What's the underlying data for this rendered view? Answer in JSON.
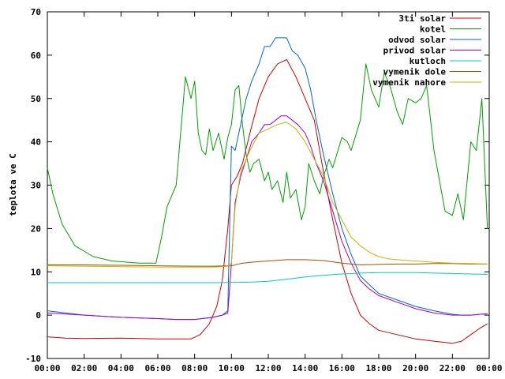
{
  "chart_data": {
    "type": "line",
    "title": "",
    "xlabel": "",
    "ylabel": "teplota ve C",
    "xlim": [
      0,
      24
    ],
    "ylim": [
      -10,
      70
    ],
    "x_ticks": [
      "00:00",
      "02:00",
      "04:00",
      "06:00",
      "08:00",
      "10:00",
      "12:00",
      "14:00",
      "16:00",
      "18:00",
      "20:00",
      "22:00",
      "00:00"
    ],
    "y_ticks": [
      "-10",
      "0",
      "10",
      "20",
      "30",
      "40",
      "50",
      "60",
      "70"
    ],
    "grid": false,
    "legend_position": "top-right",
    "series": [
      {
        "name": "3ti solar",
        "color": "#cc0000",
        "x": [
          0,
          1,
          2,
          4,
          6,
          7,
          7.8,
          8.3,
          8.8,
          9.2,
          9.5,
          9.8,
          10.0,
          10.3,
          10.6,
          11,
          11.5,
          12,
          12.5,
          13,
          13.5,
          14,
          14.5,
          15,
          15.5,
          16,
          16.5,
          17,
          17.5,
          18,
          19,
          20,
          21,
          22,
          22.5,
          23,
          23.5,
          23.9
        ],
        "y": [
          -5,
          -5.3,
          -5.4,
          -5.3,
          -5.5,
          -5.5,
          -5.5,
          -4.5,
          -2,
          2,
          8,
          20,
          30,
          32,
          35,
          42,
          50,
          55,
          58,
          59,
          55,
          50,
          45,
          33,
          22,
          12,
          5,
          0,
          -2,
          -3.5,
          -4.5,
          -5.5,
          -6,
          -6.5,
          -6,
          -4.5,
          -3,
          -2
        ]
      },
      {
        "name": "kotel",
        "color": "#00a000",
        "x": [
          0,
          0.3,
          0.8,
          1.5,
          2.5,
          3.5,
          5,
          5.9,
          6.2,
          6.5,
          7,
          7.5,
          7.8,
          8,
          8.2,
          8.4,
          8.6,
          8.8,
          9,
          9.3,
          9.6,
          9.8,
          10,
          10.2,
          10.4,
          10.6,
          10.8,
          11,
          11.2,
          11.5,
          11.8,
          12,
          12.2,
          12.5,
          12.8,
          13,
          13.2,
          13.5,
          13.8,
          14,
          14.2,
          14.5,
          14.8,
          15,
          15.3,
          15.5,
          16,
          16.3,
          16.5,
          17,
          17.3,
          17.6,
          18,
          18.3,
          18.6,
          19,
          19.3,
          19.6,
          20,
          20.3,
          20.6,
          21,
          21.3,
          21.6,
          22,
          22.3,
          22.6,
          23,
          23.3,
          23.6,
          23.9
        ],
        "y": [
          34,
          28,
          21,
          16,
          13.5,
          12.5,
          12,
          12,
          18,
          25,
          30,
          55,
          50,
          54,
          42,
          38,
          37,
          43,
          38,
          42,
          36,
          41,
          44,
          52,
          53,
          44,
          37,
          33,
          35,
          36,
          31,
          33,
          29,
          31,
          26,
          33,
          27,
          29,
          22,
          25,
          35,
          31,
          28,
          32,
          36,
          34,
          41,
          40,
          38,
          45,
          58,
          52,
          48,
          56,
          53,
          47,
          44,
          50,
          49,
          50,
          53,
          38,
          31,
          24,
          23,
          28,
          22,
          40,
          38,
          50,
          20
        ]
      },
      {
        "name": "odvod solar",
        "color": "#0066cc",
        "x": [
          0,
          2,
          4,
          6,
          7,
          8,
          9,
          9.5,
          9.8,
          10.0,
          10.2,
          10.5,
          10.8,
          11.1,
          11.5,
          11.8,
          12.1,
          12.4,
          12.7,
          13,
          13.3,
          13.6,
          14,
          14.3,
          14.6,
          15,
          15.5,
          16,
          16.5,
          17,
          17.5,
          18,
          19,
          20,
          21,
          22,
          22.5,
          23,
          23.5,
          23.9
        ],
        "y": [
          1,
          0,
          -0.5,
          -0.8,
          -1,
          -1,
          -0.5,
          0,
          1,
          39,
          38,
          44,
          50,
          54,
          58,
          62,
          62,
          64,
          64,
          64,
          61,
          60,
          57,
          52,
          45,
          37,
          28,
          20,
          14,
          9,
          7,
          5,
          3.5,
          2,
          1,
          0.2,
          0,
          0,
          0.2,
          0.3
        ]
      },
      {
        "name": "privod solar",
        "color": "#a000c8",
        "x": [
          0,
          2,
          4,
          6,
          7,
          8,
          9,
          9.5,
          9.8,
          10.0,
          10.2,
          10.5,
          10.8,
          11.1,
          11.5,
          11.8,
          12.1,
          12.4,
          12.7,
          13,
          13.3,
          13.6,
          14,
          14.3,
          14.6,
          15,
          15.5,
          16,
          16.5,
          17,
          17.5,
          18,
          19,
          20,
          21,
          22,
          22.5,
          23,
          23.5,
          23.9
        ],
        "y": [
          0.5,
          0,
          -0.5,
          -0.8,
          -1,
          -1,
          -0.5,
          0,
          0.5,
          12,
          26,
          32,
          36,
          40,
          42,
          44,
          44,
          45,
          46,
          46,
          45,
          44,
          42,
          39,
          35,
          31,
          24,
          17,
          12,
          8,
          6,
          4.5,
          3,
          1.5,
          0.5,
          0,
          0,
          0,
          0.2,
          0.3
        ]
      },
      {
        "name": "kutloch",
        "color": "#00c8c8",
        "x": [
          0,
          3,
          6,
          9,
          11,
          12,
          13,
          14,
          15,
          16,
          17,
          18,
          19,
          20,
          21,
          22,
          23,
          23.9
        ],
        "y": [
          7.5,
          7.5,
          7.5,
          7.5,
          7.6,
          7.8,
          8.3,
          8.8,
          9.2,
          9.5,
          9.7,
          9.8,
          9.8,
          9.8,
          9.7,
          9.6,
          9.5,
          9.4
        ]
      },
      {
        "name": "vymenik dole",
        "color": "#a05000",
        "x": [
          0,
          2,
          4,
          6,
          8,
          9,
          10,
          10.5,
          11,
          12,
          13,
          14,
          15,
          16,
          17,
          18,
          19,
          20,
          21,
          22,
          23,
          23.9
        ],
        "y": [
          11.6,
          11.6,
          11.5,
          11.4,
          11.3,
          11.3,
          11.4,
          11.9,
          12.2,
          12.5,
          12.8,
          12.8,
          12.6,
          12,
          11.6,
          11.7,
          11.8,
          11.8,
          11.9,
          11.9,
          11.8,
          11.8
        ]
      },
      {
        "name": "vymenik nahore",
        "color": "#c8b400",
        "x": [
          0,
          2,
          4,
          6,
          8,
          9,
          9.5,
          9.8,
          10.0,
          10.2,
          10.5,
          11,
          11.5,
          12,
          12.5,
          13,
          13.5,
          14,
          14.5,
          15,
          15.5,
          16,
          16.5,
          17,
          17.5,
          18,
          18.5,
          19,
          20,
          21,
          22,
          23,
          23.9
        ],
        "y": [
          11.4,
          11.3,
          11.2,
          11.1,
          11.1,
          11.1,
          11.2,
          11.3,
          12,
          25,
          33,
          38,
          42,
          43,
          44,
          44.5,
          43,
          40,
          36,
          32,
          26,
          22,
          18,
          16,
          14.5,
          13.5,
          13,
          12.8,
          12.5,
          12.2,
          12,
          11.9,
          11.8
        ]
      }
    ]
  }
}
